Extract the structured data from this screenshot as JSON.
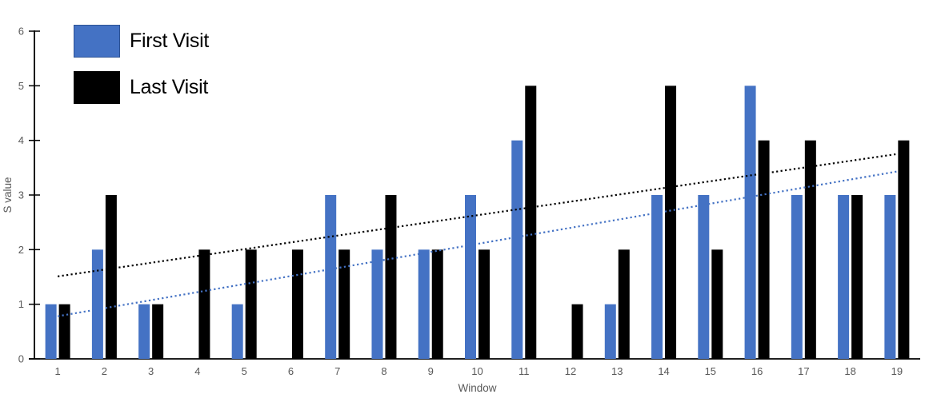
{
  "chart_data": {
    "type": "bar",
    "title": "",
    "xlabel": "Window",
    "ylabel": "S value",
    "categories": [
      "1",
      "2",
      "3",
      "4",
      "5",
      "6",
      "7",
      "8",
      "9",
      "10",
      "11",
      "12",
      "13",
      "14",
      "15",
      "16",
      "17",
      "18",
      "19"
    ],
    "series": [
      {
        "name": "First Visit",
        "color": "#4472C4",
        "border_color": "#2E5395",
        "values": [
          1,
          2,
          1,
          0,
          1,
          0,
          3,
          2,
          2,
          3,
          4,
          0,
          1,
          3,
          3,
          5,
          3,
          3,
          3
        ],
        "trendline": {
          "style": "dotted",
          "x_start": 1,
          "y_start": 0.78,
          "x_end": 19,
          "y_end": 3.43
        }
      },
      {
        "name": "Last Visit",
        "color": "#000000",
        "border_color": "#000000",
        "values": [
          1,
          3,
          1,
          2,
          2,
          2,
          2,
          3,
          2,
          2,
          5,
          1,
          2,
          5,
          2,
          4,
          4,
          3,
          4
        ],
        "trendline": {
          "style": "dotted",
          "x_start": 1,
          "y_start": 1.51,
          "x_end": 19,
          "y_end": 3.75
        }
      }
    ],
    "ylim": [
      0,
      6
    ],
    "yticks": [
      0,
      1,
      2,
      3,
      4,
      5,
      6
    ],
    "grid": false,
    "legend_position": "top-left",
    "colors": {
      "axis": "#000000",
      "tick_label": "#595959",
      "axis_title": "#595959",
      "background": "#FFFFFF"
    }
  }
}
